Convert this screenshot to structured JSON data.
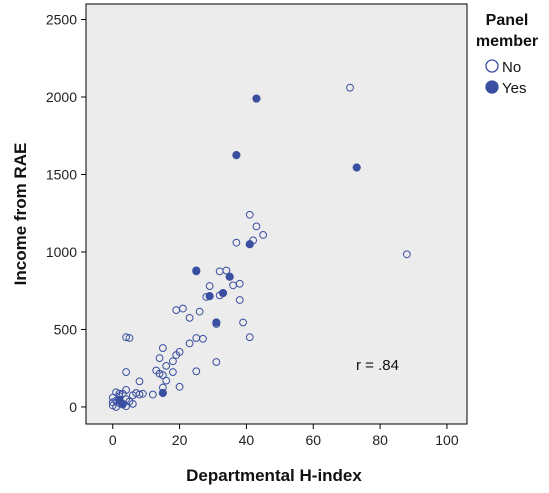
{
  "chart_data": {
    "type": "scatter",
    "xlabel": "Departmental H-index",
    "ylabel": "Income from RAE",
    "xlim": [
      -8,
      106
    ],
    "ylim": [
      -110,
      2600
    ],
    "xticks": [
      "0",
      "20",
      "40",
      "60",
      "80",
      "100"
    ],
    "yticks": [
      "0",
      "500",
      "1000",
      "1500",
      "2000",
      "2500"
    ],
    "legend": {
      "title_line1": "Panel",
      "title_line2": "member",
      "position": "right"
    },
    "annotation": "r = .84",
    "plot_background": "#ececec",
    "series": [
      {
        "name": "No",
        "marker": "open-circle",
        "color": "#3a4fa0",
        "points": [
          [
            71,
            2060
          ],
          [
            88,
            985
          ],
          [
            41,
            1240
          ],
          [
            43,
            1165
          ],
          [
            45,
            1110
          ],
          [
            42,
            1075
          ],
          [
            37,
            1060
          ],
          [
            38,
            795
          ],
          [
            34,
            880
          ],
          [
            32,
            875
          ],
          [
            25,
            875
          ],
          [
            36,
            785
          ],
          [
            29,
            780
          ],
          [
            38,
            690
          ],
          [
            32,
            720
          ],
          [
            28,
            710
          ],
          [
            21,
            635
          ],
          [
            19,
            625
          ],
          [
            26,
            615
          ],
          [
            23,
            575
          ],
          [
            39,
            545
          ],
          [
            31,
            535
          ],
          [
            4,
            450
          ],
          [
            5,
            445
          ],
          [
            41,
            450
          ],
          [
            25,
            445
          ],
          [
            27,
            440
          ],
          [
            23,
            410
          ],
          [
            15,
            380
          ],
          [
            20,
            355
          ],
          [
            19,
            335
          ],
          [
            14,
            315
          ],
          [
            18,
            295
          ],
          [
            31,
            290
          ],
          [
            16,
            265
          ],
          [
            4,
            225
          ],
          [
            18,
            225
          ],
          [
            25,
            230
          ],
          [
            13,
            235
          ],
          [
            14,
            215
          ],
          [
            15,
            205
          ],
          [
            16,
            170
          ],
          [
            8,
            165
          ],
          [
            20,
            130
          ],
          [
            15,
            125
          ],
          [
            4,
            110
          ],
          [
            1,
            95
          ],
          [
            3,
            85
          ],
          [
            8,
            80
          ],
          [
            6,
            75
          ],
          [
            2,
            70
          ],
          [
            0,
            60
          ],
          [
            12,
            80
          ],
          [
            4,
            50
          ],
          [
            1,
            40
          ],
          [
            5,
            35
          ],
          [
            2,
            25
          ],
          [
            3,
            15
          ],
          [
            6,
            20
          ],
          [
            4,
            5
          ],
          [
            0,
            10
          ],
          [
            1,
            0
          ],
          [
            7,
            90
          ],
          [
            9,
            85
          ],
          [
            2,
            85
          ],
          [
            0,
            30
          ]
        ]
      },
      {
        "name": "Yes",
        "marker": "filled-circle",
        "color": "#3a4fa0",
        "points": [
          [
            43,
            1990
          ],
          [
            37,
            1625
          ],
          [
            73,
            1545
          ],
          [
            41,
            1050
          ],
          [
            25,
            880
          ],
          [
            35,
            840
          ],
          [
            29,
            715
          ],
          [
            33,
            735
          ],
          [
            31,
            545
          ],
          [
            15,
            90
          ],
          [
            2,
            45
          ],
          [
            3,
            20
          ]
        ]
      }
    ]
  }
}
